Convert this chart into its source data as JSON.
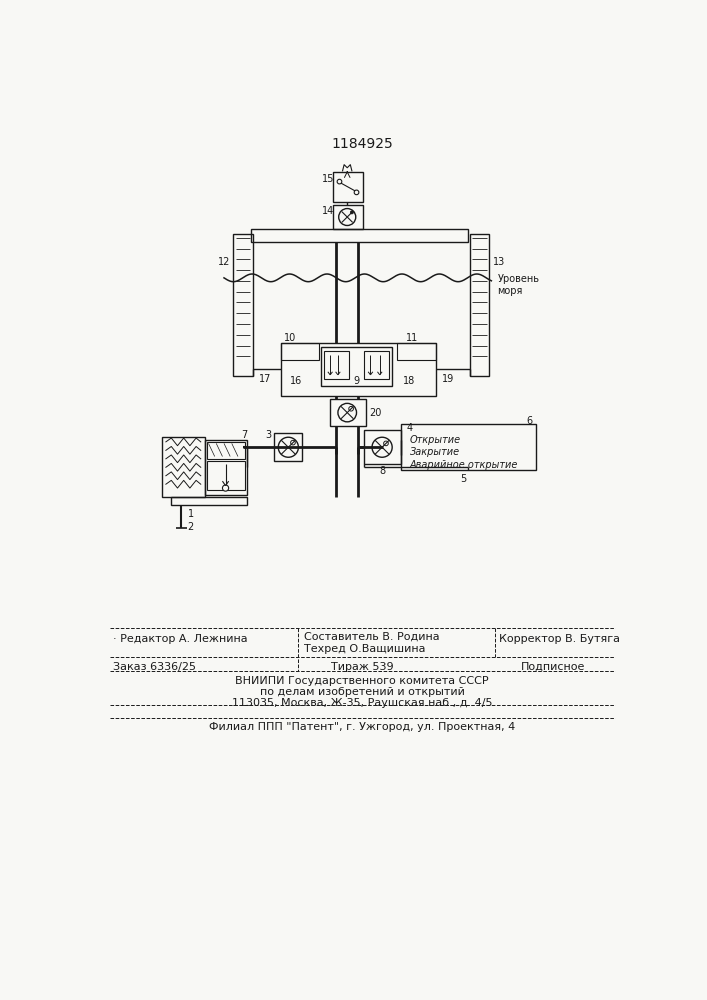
{
  "title": "1184925",
  "bg_color": "#f8f8f5",
  "line_color": "#1a1a1a",
  "text_color": "#1a1a1a",
  "sea_level_label": "Уровень\nморя",
  "box_labels": {
    "open": "Открытие",
    "close": "Закрытие",
    "emergency": "Аварийное открытие"
  },
  "footer_editor": "· Редактор А. Лежнина",
  "footer_comp1": "Составитель В. Родина",
  "footer_comp2": "Техред О.Ващишина",
  "footer_corr": "Корректор В. Бутяга",
  "footer_order": "Заказ 6336/25",
  "footer_circ": "Тираж 539",
  "footer_sub": "Подписное",
  "footer_vn1": "ВНИИПИ Государственного комитета СССР",
  "footer_vn2": "по делам изобретений и открытий",
  "footer_vn3": "113035, Москва, Ж-35, Раушская наб., д. 4/5",
  "footer_fil": "Филиал ППП \"Патент\", г. Ужгород, ул. Проектная, 4"
}
